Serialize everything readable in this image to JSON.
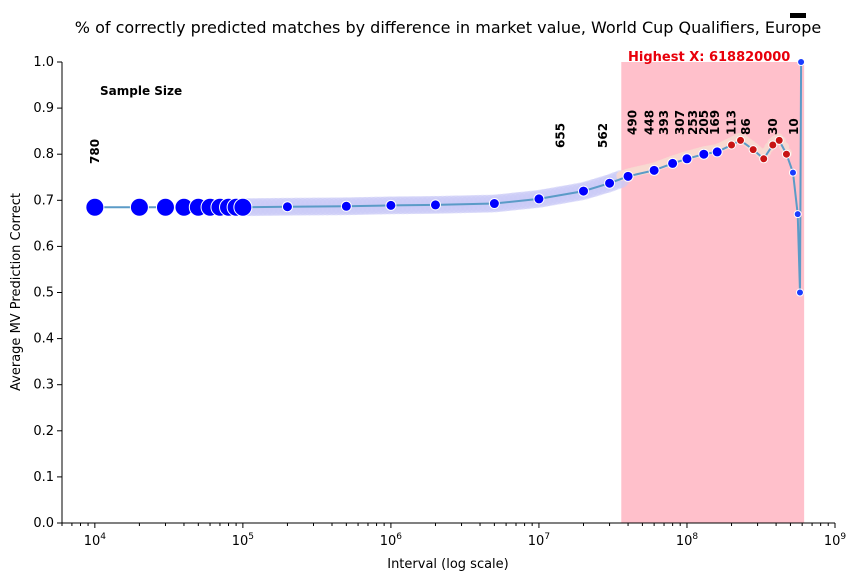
{
  "chart_data": {
    "type": "scatter",
    "title": "% of correctly predicted matches by difference in market value, World Cup Qualifiers, Europe",
    "xlabel": "Interval (log scale)",
    "ylabel": "Average MV Prediction Correct",
    "x_scale": "log",
    "xlim": [
      6000,
      1000000000
    ],
    "ylim": [
      0,
      1
    ],
    "y_ticks": [
      "0.0",
      "0.1",
      "0.2",
      "0.3",
      "0.4",
      "0.5",
      "0.6",
      "0.7",
      "0.8",
      "0.9",
      "1.0"
    ],
    "x_ticks": [
      {
        "value": 10000,
        "base": "10",
        "exp": "4"
      },
      {
        "value": 100000,
        "base": "10",
        "exp": "5"
      },
      {
        "value": 1000000,
        "base": "10",
        "exp": "6"
      },
      {
        "value": 10000000,
        "base": "10",
        "exp": "7"
      },
      {
        "value": 100000000,
        "base": "10",
        "exp": "8"
      },
      {
        "value": 1000000000,
        "base": "10",
        "exp": "9"
      }
    ],
    "sample_size_label": "Sample Size",
    "highest_label": "Highest X: 618820000",
    "highlight_band": {
      "x_start": 36000000,
      "x_end": 618820000,
      "color": "#ffc0cb"
    },
    "line_color": "#5b9bc7",
    "series": [
      {
        "values": [
          {
            "x": 10000,
            "y": 0.685
          },
          {
            "x": 20000,
            "y": 0.685
          },
          {
            "x": 30000,
            "y": 0.685
          },
          {
            "x": 40000,
            "y": 0.685
          },
          {
            "x": 50000,
            "y": 0.685
          },
          {
            "x": 60000,
            "y": 0.685
          },
          {
            "x": 70000,
            "y": 0.685
          },
          {
            "x": 80000,
            "y": 0.685
          },
          {
            "x": 90000,
            "y": 0.685
          },
          {
            "x": 100000,
            "y": 0.685
          },
          {
            "x": 200000,
            "y": 0.686
          },
          {
            "x": 500000,
            "y": 0.687
          },
          {
            "x": 1000000,
            "y": 0.689
          },
          {
            "x": 2000000,
            "y": 0.69
          },
          {
            "x": 5000000,
            "y": 0.693
          },
          {
            "x": 10000000,
            "y": 0.703
          },
          {
            "x": 20000000,
            "y": 0.72
          },
          {
            "x": 30000000,
            "y": 0.737
          },
          {
            "x": 40000000,
            "y": 0.752
          },
          {
            "x": 60000000,
            "y": 0.765
          },
          {
            "x": 80000000,
            "y": 0.78
          },
          {
            "x": 100000000,
            "y": 0.79
          },
          {
            "x": 130000000,
            "y": 0.8
          },
          {
            "x": 160000000,
            "y": 0.805
          },
          {
            "x": 200000000,
            "y": 0.82
          },
          {
            "x": 230000000,
            "y": 0.83
          },
          {
            "x": 280000000,
            "y": 0.81
          },
          {
            "x": 330000000,
            "y": 0.79
          },
          {
            "x": 380000000,
            "y": 0.82
          },
          {
            "x": 420000000,
            "y": 0.83
          },
          {
            "x": 470000000,
            "y": 0.8
          },
          {
            "x": 520000000,
            "y": 0.76
          },
          {
            "x": 560000000,
            "y": 0.67
          },
          {
            "x": 580000000,
            "y": 0.5
          },
          {
            "x": 590000000,
            "y": 1.0
          }
        ]
      }
    ],
    "sample_counts": [
      {
        "x": 10000,
        "label": "780"
      },
      {
        "x": 14000000,
        "label": "655"
      },
      {
        "x": 27000000,
        "label": "562"
      },
      {
        "x": 43000000,
        "label": "490"
      },
      {
        "x": 56000000,
        "label": "448"
      },
      {
        "x": 70000000,
        "label": "393"
      },
      {
        "x": 90000000,
        "label": "307"
      },
      {
        "x": 110000000,
        "label": "253"
      },
      {
        "x": 130000000,
        "label": "205"
      },
      {
        "x": 155000000,
        "label": "169"
      },
      {
        "x": 200000000,
        "label": "113"
      },
      {
        "x": 250000000,
        "label": "86"
      },
      {
        "x": 380000000,
        "label": "30"
      },
      {
        "x": 530000000,
        "label": "10"
      }
    ]
  }
}
